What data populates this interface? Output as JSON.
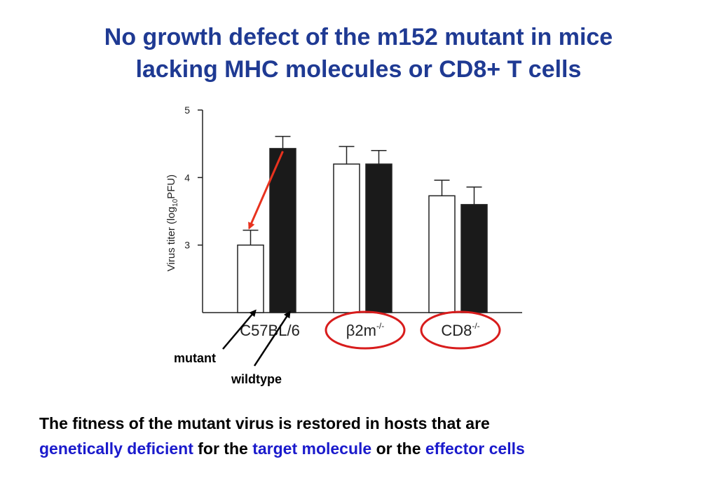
{
  "title": {
    "line1": "No growth defect of the m152 mutant in mice",
    "line2": "lacking MHC molecules or CD8+ T cells"
  },
  "chart_data": {
    "type": "bar",
    "ylabel": "Virus titer (log10PFU)",
    "ylabel_parts": {
      "pre": "Virus titer (log",
      "sub": "10",
      "post": "PFU)"
    },
    "ylim": [
      2,
      5
    ],
    "yticks": [
      "3",
      "4",
      "5"
    ],
    "categories": [
      {
        "base": "C57BL/6",
        "sup": ""
      },
      {
        "base": "β2m",
        "sup": "-/-"
      },
      {
        "base": "CD8",
        "sup": "-/-"
      }
    ],
    "series": [
      {
        "name": "mutant",
        "color": "#ffffff",
        "values": [
          3.0,
          4.2,
          3.73
        ],
        "errors": [
          0.22,
          0.26,
          0.23
        ]
      },
      {
        "name": "wildtype",
        "color": "#1a1a1a",
        "values": [
          4.43,
          4.2,
          3.6
        ],
        "errors": [
          0.18,
          0.2,
          0.26
        ]
      }
    ],
    "annotations": {
      "mutant_label": "mutant",
      "wildtype_label": "wildtype",
      "red_arrow_color": "#e8321e",
      "circle_color": "#d81c1c",
      "circled_categories": [
        1,
        2
      ]
    }
  },
  "caption": {
    "part1": "The fitness of the mutant virus is restored in hosts that are",
    "hl1": "genetically deficient",
    "part2": " for the ",
    "hl2": "target molecule",
    "part3": " or the ",
    "hl3": "effector cells"
  }
}
